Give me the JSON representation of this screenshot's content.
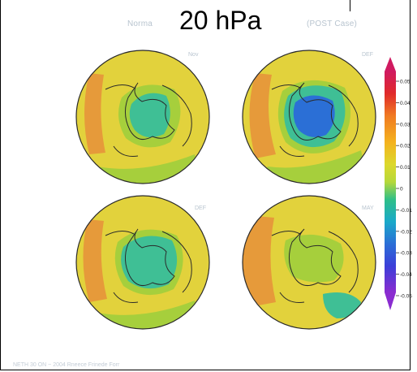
{
  "title": "20 hPa",
  "background_title_left": "Norma",
  "background_title_right": "(POST Case)",
  "panels": [
    {
      "id": "top-left",
      "label": "Nov"
    },
    {
      "id": "top-right",
      "label": "DEF"
    },
    {
      "id": "bottom-left",
      "label": "DEF"
    },
    {
      "id": "bottom-right",
      "label": "MAY"
    }
  ],
  "colorbar": {
    "ticks": [
      "0.05",
      "0.04",
      "0.03",
      "0.02",
      "0.01",
      "0",
      "-0.01",
      "-0.02",
      "-0.03",
      "-0.04",
      "-0.05"
    ],
    "colors": [
      "#c8102e",
      "#e8302a",
      "#f07a22",
      "#f4b21e",
      "#d6d62a",
      "#a8d43a",
      "#2fbf88",
      "#1aa9c9",
      "#2b6fd6",
      "#3b3fd8",
      "#7b2cd0"
    ]
  },
  "footer": "NETH 30 ON ~ 2004 Rneece Frinede Forr",
  "field_colors": {
    "ocean_yellow": "#e6d23e",
    "green": "#a6cf3c",
    "orange": "#e69a3a",
    "teal": "#3fbf95",
    "blue": "#2b6fd6",
    "coast": "#2a2a2a"
  }
}
